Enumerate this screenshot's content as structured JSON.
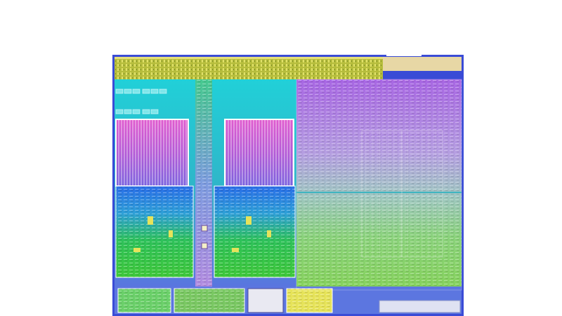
{
  "image": {
    "subject": "processor-die-shot",
    "palette": {
      "background": "#ffffff",
      "frame": "#3a4bd6",
      "io_top": "#b9bf3a",
      "io_top_right": "#e7d7a5",
      "interconnect_cyan": "#1fc7d3",
      "cache_magenta": "#d153cf",
      "cache_purple": "#9a59d6",
      "core_blue": "#2f78e8",
      "core_green": "#37c34c",
      "gpu_purple": "#b36be0",
      "gpu_lavender": "#b7a3df",
      "gpu_green": "#7bd25d",
      "bottom_io": "#5c76e0",
      "pad_yellow": "#e6e35a"
    }
  }
}
